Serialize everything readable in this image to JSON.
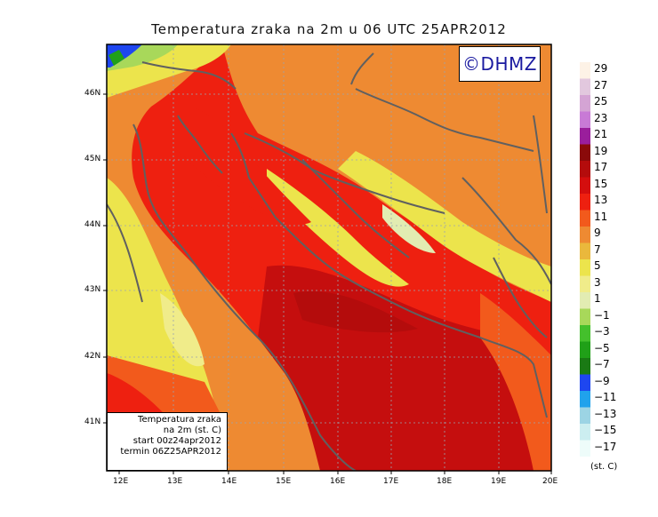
{
  "title": "Temperatura zraka na 2m u 06 UTC 25APR2012",
  "watermark": "©DHMZ",
  "info": {
    "line1": "Temperatura zraka",
    "line2": "na 2m (st. C)",
    "line3": "start 00z24apr2012",
    "line4": "termin 06Z25APR2012"
  },
  "legend": {
    "unit": "(st. C)",
    "labels": [
      "29",
      "27",
      "25",
      "23",
      "21",
      "19",
      "17",
      "15",
      "13",
      "11",
      "9",
      "7",
      "5",
      "3",
      "1",
      "−1",
      "−3",
      "−5",
      "−7",
      "−9",
      "−11",
      "−13",
      "−15",
      "−17"
    ],
    "colors": [
      "#fdf2e6",
      "#e2c8de",
      "#d4a4d4",
      "#c87ad6",
      "#9a1e9c",
      "#8a0a0a",
      "#b40c0c",
      "#d40e0e",
      "#ee2010",
      "#f25a1c",
      "#ee8a32",
      "#eab83c",
      "#ece44c",
      "#f0ec8a",
      "#e2ecb2",
      "#a8d85a",
      "#44c02c",
      "#20a018",
      "#1a7a14",
      "#1e46f0",
      "#20a2ec",
      "#9cd4e4",
      "#cceef0",
      "#eefcfa"
    ]
  },
  "axes": {
    "lon_labels": [
      "12E",
      "13E",
      "14E",
      "15E",
      "16E",
      "17E",
      "18E",
      "19E",
      "20E"
    ],
    "lat_labels": [
      "46N",
      "45N",
      "44N",
      "43N",
      "42N",
      "41N"
    ]
  }
}
